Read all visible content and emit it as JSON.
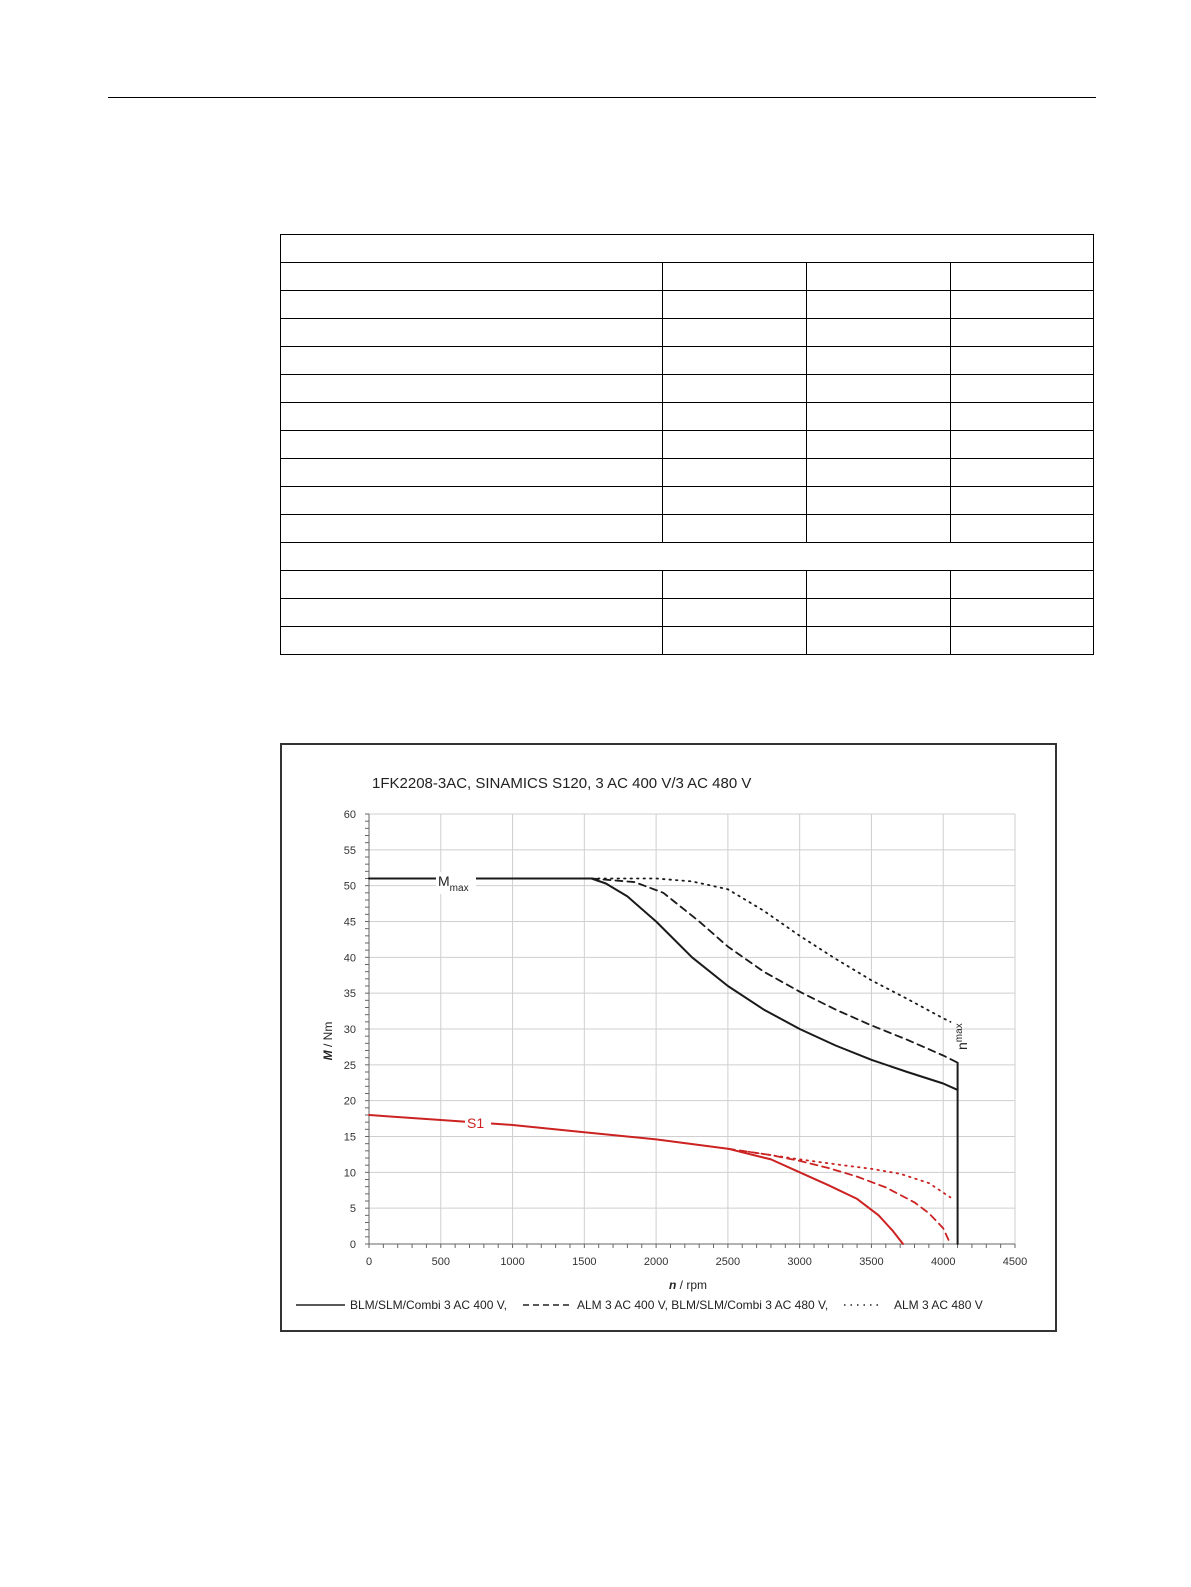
{
  "chart_data": {
    "type": "line",
    "title": "1FK2208-3AC,  SINAMICS S120,  3 AC 400 V/3 AC 480 V",
    "xlabel_var": "n",
    "xlabel_unit": " / rpm",
    "ylabel_var": "M",
    "ylabel_unit": " / Nm",
    "xlim": [
      0,
      4500
    ],
    "ylim": [
      0,
      60
    ],
    "x_ticks": [
      "0",
      "500",
      "1000",
      "1500",
      "2000",
      "2500",
      "3000",
      "3500",
      "4000",
      "4500"
    ],
    "y_ticks": [
      "0",
      "5",
      "10",
      "15",
      "20",
      "25",
      "30",
      "35",
      "40",
      "45",
      "50",
      "55",
      "60"
    ],
    "grid": true,
    "colors": {
      "mmax": "#1a1a1a",
      "s1": "#cc2222"
    },
    "annotations": {
      "mmax_main": "M",
      "mmax_sub": "max",
      "nmax_main": "n",
      "nmax_sub": "max",
      "s1": "S1"
    },
    "legend": [
      {
        "style": "solid",
        "label": "BLM/SLM/Combi 3 AC 400 V,"
      },
      {
        "style": "dashed",
        "label": "ALM 3 AC 400 V, BLM/SLM/Combi 3 AC 480 V,"
      },
      {
        "style": "dotted",
        "label": "ALM 3 AC 480 V"
      }
    ],
    "legend_position": "bottom",
    "series": [
      {
        "group": "mmax",
        "style": "solid",
        "points": [
          [
            0,
            51
          ],
          [
            1550,
            51
          ],
          [
            1650,
            50.3
          ],
          [
            1800,
            48.5
          ],
          [
            2000,
            45
          ],
          [
            2250,
            40
          ],
          [
            2500,
            36
          ],
          [
            2750,
            32.7
          ],
          [
            3000,
            30
          ],
          [
            3250,
            27.7
          ],
          [
            3500,
            25.7
          ],
          [
            3750,
            24
          ],
          [
            4000,
            22.4
          ],
          [
            4100,
            21.5
          ]
        ]
      },
      {
        "group": "mmax",
        "style": "dashed",
        "points": [
          [
            1550,
            51
          ],
          [
            1850,
            50.5
          ],
          [
            2050,
            49
          ],
          [
            2300,
            45
          ],
          [
            2500,
            41.5
          ],
          [
            2750,
            38
          ],
          [
            3000,
            35.2
          ],
          [
            3250,
            32.7
          ],
          [
            3500,
            30.5
          ],
          [
            3750,
            28.5
          ],
          [
            4000,
            26.3
          ],
          [
            4100,
            25.3
          ]
        ]
      },
      {
        "group": "mmax",
        "style": "dotted",
        "points": [
          [
            1550,
            51
          ],
          [
            2000,
            51
          ],
          [
            2250,
            50.6
          ],
          [
            2500,
            49.5
          ],
          [
            2750,
            46.5
          ],
          [
            3000,
            43
          ],
          [
            3250,
            39.8
          ],
          [
            3500,
            36.8
          ],
          [
            3750,
            34.2
          ],
          [
            4000,
            31.5
          ],
          [
            4050,
            31
          ]
        ]
      },
      {
        "group": "mmax_limit",
        "style": "solid",
        "points": [
          [
            4100,
            25.3
          ],
          [
            4100,
            0
          ]
        ]
      },
      {
        "group": "s1",
        "style": "solid",
        "points": [
          [
            0,
            18
          ],
          [
            500,
            17.3
          ],
          [
            1000,
            16.6
          ],
          [
            1500,
            15.6
          ],
          [
            2000,
            14.6
          ],
          [
            2500,
            13.3
          ],
          [
            2800,
            11.8
          ],
          [
            3000,
            10
          ],
          [
            3200,
            8.2
          ],
          [
            3400,
            6.3
          ],
          [
            3550,
            4
          ],
          [
            3650,
            1.8
          ],
          [
            3720,
            0
          ]
        ]
      },
      {
        "group": "s1",
        "style": "dashed",
        "points": [
          [
            2500,
            13.3
          ],
          [
            2800,
            12.4
          ],
          [
            3000,
            11.6
          ],
          [
            3200,
            10.6
          ],
          [
            3400,
            9.4
          ],
          [
            3600,
            7.9
          ],
          [
            3800,
            5.8
          ],
          [
            3900,
            4.3
          ],
          [
            4000,
            2.2
          ],
          [
            4050,
            0
          ]
        ]
      },
      {
        "group": "s1",
        "style": "dotted",
        "points": [
          [
            2600,
            13
          ],
          [
            3000,
            11.8
          ],
          [
            3300,
            11
          ],
          [
            3500,
            10.5
          ],
          [
            3700,
            9.8
          ],
          [
            3900,
            8.5
          ],
          [
            4050,
            6.5
          ]
        ]
      }
    ]
  }
}
